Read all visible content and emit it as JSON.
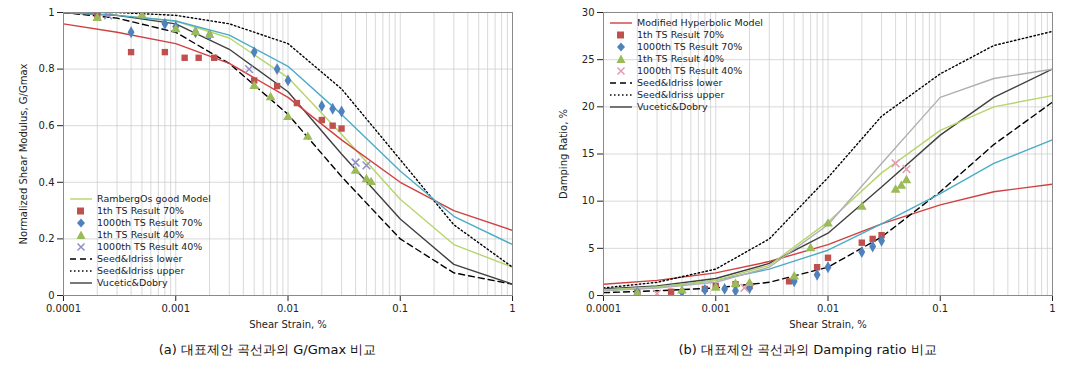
{
  "chart_data": [
    {
      "type": "line",
      "title": "(a) 대표제안 곡선과의 G/Gmax 비교",
      "xlabel": "Shear Strain, %",
      "ylabel": "Normalized Shear Modulus, G/Gmax",
      "log": "x",
      "grid": true,
      "legend": "lower left",
      "xlim": [
        0.0001,
        1
      ],
      "xticks": [
        0.0001,
        0.001,
        0.01,
        0.1,
        1
      ],
      "ylim": [
        0,
        1
      ],
      "yticks": [
        0,
        0.2,
        0.4,
        0.6,
        0.8,
        1
      ],
      "series": [
        {
          "name": "RambergOs good Model",
          "type": "line",
          "line_style": "solid",
          "color": "#b5d56a",
          "x": [
            0.0001,
            0.0003,
            0.001,
            0.003,
            0.01,
            0.03,
            0.1,
            0.3,
            1
          ],
          "values": [
            1.0,
            0.99,
            0.97,
            0.91,
            0.77,
            0.57,
            0.34,
            0.18,
            0.1
          ]
        },
        {
          "name": "1th TS Result 70%",
          "type": "scatter",
          "marker": "square",
          "color": "#c0504d",
          "x": [
            0.0002,
            0.0004,
            0.0008,
            0.0012,
            0.0016,
            0.0022,
            0.005,
            0.008,
            0.012,
            0.02,
            0.025,
            0.03
          ],
          "values": [
            0.99,
            0.86,
            0.86,
            0.84,
            0.84,
            0.84,
            0.76,
            0.74,
            0.68,
            0.62,
            0.6,
            0.59
          ]
        },
        {
          "name": "1000th TS Result 70%",
          "type": "scatter",
          "marker": "diamond",
          "color": "#4f81bd",
          "x": [
            0.0004,
            0.0008,
            0.001,
            0.0015,
            0.002,
            0.005,
            0.008,
            0.01,
            0.02,
            0.025,
            0.03
          ],
          "values": [
            0.93,
            0.96,
            0.95,
            0.93,
            0.92,
            0.86,
            0.8,
            0.76,
            0.67,
            0.66,
            0.65
          ]
        },
        {
          "name": "1th TS Result 40%",
          "type": "scatter",
          "marker": "triangle",
          "color": "#9bbb59",
          "x": [
            0.0002,
            0.0005,
            0.001,
            0.0015,
            0.002,
            0.005,
            0.007,
            0.01,
            0.015,
            0.04,
            0.05,
            0.055
          ],
          "values": [
            0.98,
            0.99,
            0.94,
            0.93,
            0.92,
            0.74,
            0.7,
            0.63,
            0.56,
            0.44,
            0.41,
            0.4
          ]
        },
        {
          "name": "1000th TS Result 40%",
          "type": "scatter",
          "marker": "x",
          "color": "#8f8fc8",
          "x": [
            0.00025,
            0.0045,
            0.04,
            0.05
          ],
          "values": [
            0.99,
            0.8,
            0.47,
            0.46
          ]
        },
        {
          "name": "Seed&Idriss lower",
          "type": "line",
          "line_style": "dashed",
          "color": "#000000",
          "x": [
            0.0001,
            0.0003,
            0.001,
            0.003,
            0.01,
            0.03,
            0.1,
            0.3,
            1
          ],
          "values": [
            1.0,
            0.98,
            0.93,
            0.82,
            0.64,
            0.42,
            0.2,
            0.08,
            0.04
          ]
        },
        {
          "name": "Seed&Idriss upper",
          "type": "line",
          "line_style": "dotted",
          "color": "#000000",
          "x": [
            0.0001,
            0.0003,
            0.001,
            0.003,
            0.01,
            0.03,
            0.1,
            0.3,
            1
          ],
          "values": [
            1.0,
            1.0,
            0.99,
            0.96,
            0.89,
            0.73,
            0.48,
            0.25,
            0.1
          ]
        },
        {
          "name": "Vucetic&Dobry",
          "type": "line",
          "line_style": "solid",
          "color": "#404040",
          "x": [
            0.0001,
            0.0003,
            0.001,
            0.003,
            0.01,
            0.03,
            0.1,
            0.3,
            1
          ],
          "values": [
            1.0,
            0.99,
            0.96,
            0.87,
            0.72,
            0.5,
            0.27,
            0.11,
            0.04
          ]
        },
        {
          "name": null,
          "type": "line",
          "line_style": "solid",
          "color": "#d04040",
          "x": [
            0.0001,
            0.0003,
            0.001,
            0.003,
            0.01,
            0.03,
            0.1,
            0.3,
            1
          ],
          "values": [
            0.96,
            0.93,
            0.89,
            0.82,
            0.7,
            0.55,
            0.4,
            0.3,
            0.23
          ]
        },
        {
          "name": null,
          "type": "line",
          "line_style": "solid",
          "color": "#4bacc6",
          "x": [
            0.0001,
            0.0003,
            0.001,
            0.003,
            0.01,
            0.03,
            0.1,
            0.3,
            1
          ],
          "values": [
            1.0,
            0.99,
            0.97,
            0.92,
            0.81,
            0.64,
            0.44,
            0.28,
            0.18
          ]
        }
      ]
    },
    {
      "type": "line",
      "title": "(b) 대표제안 곡선과의 Damping ratio 비교",
      "xlabel": "Shear Strain, %",
      "ylabel": "Damping Ratio, %",
      "log": "x",
      "grid": true,
      "legend": "upper left",
      "xlim": [
        0.0001,
        1
      ],
      "xticks": [
        0.0001,
        0.001,
        0.01,
        0.1,
        1
      ],
      "ylim": [
        0,
        30
      ],
      "yticks": [
        0,
        5,
        10,
        15,
        20,
        25,
        30
      ],
      "series": [
        {
          "name": "Modified Hyperbolic Model",
          "type": "line",
          "line_style": "solid",
          "color": "#d04040",
          "x": [
            0.0001,
            0.0003,
            0.001,
            0.003,
            0.01,
            0.03,
            0.1,
            0.3,
            1
          ],
          "values": [
            1.2,
            1.6,
            2.4,
            3.6,
            5.4,
            7.6,
            9.6,
            11.0,
            11.8
          ]
        },
        {
          "name": "1th TS Result 70%",
          "type": "scatter",
          "marker": "square",
          "color": "#c0504d",
          "x": [
            0.0002,
            0.0004,
            0.0008,
            0.001,
            0.0015,
            0.002,
            0.0045,
            0.008,
            0.01,
            0.02,
            0.025,
            0.03
          ],
          "values": [
            0.3,
            0.4,
            0.7,
            1.0,
            1.2,
            1.0,
            1.5,
            3.0,
            4.0,
            5.6,
            6.0,
            6.4
          ]
        },
        {
          "name": "1000th TS Result 70%",
          "type": "scatter",
          "marker": "diamond",
          "color": "#4f81bd",
          "x": [
            0.0002,
            0.0005,
            0.0008,
            0.0012,
            0.0015,
            0.002,
            0.005,
            0.008,
            0.01,
            0.02,
            0.025,
            0.03
          ],
          "values": [
            0.3,
            0.4,
            0.6,
            0.7,
            0.5,
            0.8,
            1.5,
            2.2,
            3.0,
            4.6,
            5.2,
            5.8
          ]
        },
        {
          "name": "1th TS Result 40%",
          "type": "scatter",
          "marker": "triangle",
          "color": "#9bbb59",
          "x": [
            0.0002,
            0.0005,
            0.001,
            0.0015,
            0.002,
            0.005,
            0.007,
            0.01,
            0.02,
            0.04,
            0.045,
            0.05
          ],
          "values": [
            0.2,
            0.5,
            0.8,
            1.2,
            1.3,
            2.0,
            5.0,
            7.6,
            9.4,
            11.2,
            11.6,
            12.2
          ]
        },
        {
          "name": "1000th TS Result 40%",
          "type": "scatter",
          "marker": "x",
          "color": "#e39aae",
          "x": [
            0.0003,
            0.0018,
            0.04,
            0.05
          ],
          "values": [
            0.2,
            0.8,
            14,
            13.4
          ]
        },
        {
          "name": "Seed&Idriss lower",
          "type": "line",
          "line_style": "dashed",
          "color": "#000000",
          "x": [
            0.0001,
            0.0003,
            0.001,
            0.003,
            0.01,
            0.03,
            0.1,
            0.3,
            1
          ],
          "values": [
            0.3,
            0.5,
            0.8,
            1.4,
            3.0,
            6.2,
            11.0,
            16.0,
            20.5
          ]
        },
        {
          "name": "Seed&Idriss upper",
          "type": "line",
          "line_style": "dotted",
          "color": "#000000",
          "x": [
            0.0001,
            0.0003,
            0.001,
            0.003,
            0.01,
            0.03,
            0.1,
            0.3,
            1
          ],
          "values": [
            0.8,
            1.4,
            2.8,
            6.0,
            12.5,
            19,
            23.5,
            26.5,
            28
          ]
        },
        {
          "name": "Vucetic&Dobry",
          "type": "line",
          "line_style": "solid",
          "color": "#404040",
          "x": [
            0.0001,
            0.0003,
            0.001,
            0.003,
            0.01,
            0.03,
            0.1,
            0.3,
            1
          ],
          "values": [
            0.7,
            1.0,
            1.8,
            3.4,
            6.6,
            11.5,
            17.0,
            21.0,
            24
          ]
        },
        {
          "name": null,
          "type": "line",
          "line_style": "solid",
          "color": "#4bacc6",
          "x": [
            0.0001,
            0.0003,
            0.001,
            0.003,
            0.01,
            0.03,
            0.1,
            0.3,
            1
          ],
          "values": [
            0.6,
            0.9,
            1.6,
            2.8,
            4.8,
            7.6,
            10.8,
            14,
            16.5
          ]
        },
        {
          "name": null,
          "type": "line",
          "line_style": "solid",
          "color": "#b5d56a",
          "x": [
            0.0001,
            0.0003,
            0.001,
            0.003,
            0.01,
            0.03,
            0.1,
            0.3,
            1
          ],
          "values": [
            0.6,
            0.9,
            1.6,
            3.2,
            7.8,
            13,
            17.5,
            20,
            21.2
          ]
        },
        {
          "name": null,
          "type": "line",
          "line_style": "solid",
          "color": "#b0b0b0",
          "x": [
            0.0001,
            0.0003,
            0.001,
            0.003,
            0.01,
            0.03,
            0.1,
            0.3,
            1
          ],
          "values": [
            0.5,
            0.8,
            1.4,
            3,
            7.5,
            14,
            21,
            23,
            24
          ]
        }
      ]
    }
  ]
}
